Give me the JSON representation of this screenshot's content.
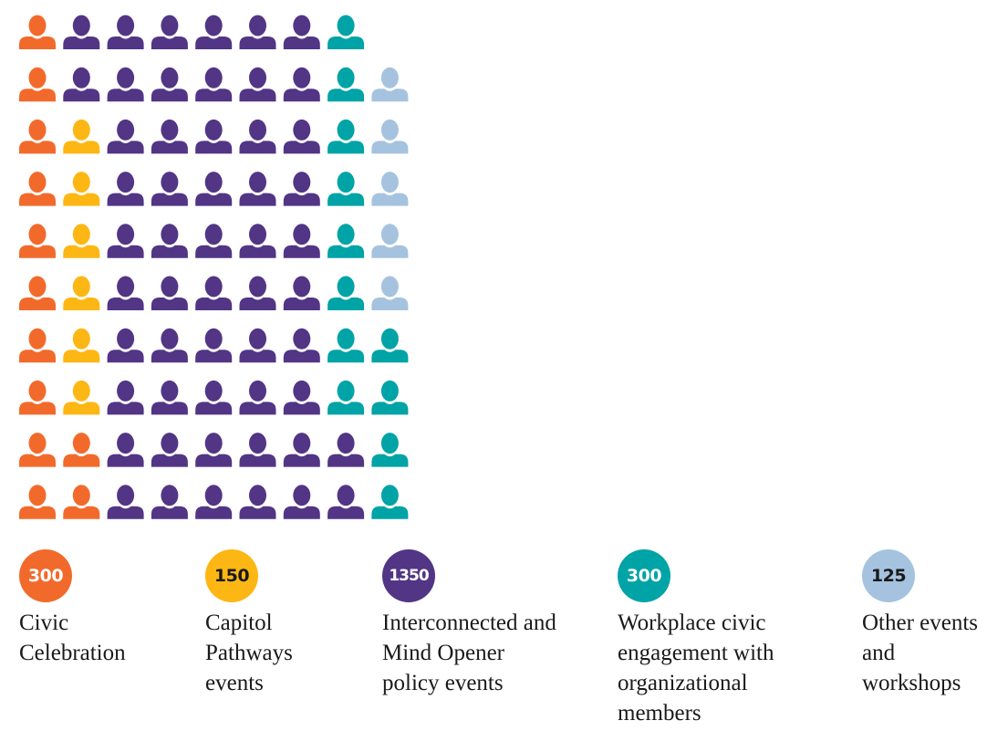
{
  "chart_data": {
    "type": "pictograph",
    "title": "",
    "grid": {
      "rows": 10,
      "columns": 22,
      "units_per_icon": 25
    },
    "fill_order": "column-major, bottom to top",
    "categories": [
      {
        "name": "Civic Celebration",
        "value_label": "300",
        "value": 300,
        "color": "#f26a2b",
        "badge_text_color": "#ffffff"
      },
      {
        "name": "Capitol Pathways events",
        "value_label": "150",
        "value": 150,
        "color": "#fdb714",
        "badge_text_color": "#1a1a1a"
      },
      {
        "name": "Interconnected and Mind Opener policy events",
        "value_label": "1350",
        "value": 1350,
        "color": "#523585",
        "badge_text_color": "#ffffff"
      },
      {
        "name": "Workplace civic engagement with organizational members",
        "value_label": "300",
        "value": 300,
        "color": "#00a3a6",
        "badge_text_color": "#ffffff"
      },
      {
        "name": "Other events and workshops",
        "value_label": "125",
        "value": 125,
        "color": "#a5c3df",
        "badge_text_color": "#1a1a1a"
      }
    ]
  }
}
